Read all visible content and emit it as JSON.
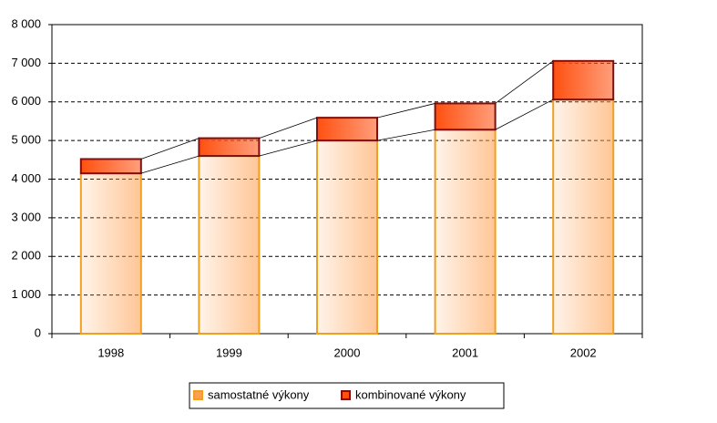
{
  "chart_data": {
    "type": "stacked_bar",
    "categories": [
      "1998",
      "1999",
      "2000",
      "2001",
      "2002"
    ],
    "series": [
      {
        "name": "samostatné výkony",
        "color": "#ffa050",
        "values": [
          4150,
          4600,
          5000,
          5280,
          6060
        ]
      },
      {
        "name": "kombinované výkony",
        "color": "#ff5010",
        "values": [
          370,
          460,
          590,
          680,
          1000
        ]
      }
    ],
    "ylim": [
      0,
      8000
    ],
    "yticks": [
      0,
      {
        "value": 1000,
        "label": "1 000"
      },
      {
        "value": 2000,
        "label": "2 000"
      },
      {
        "value": 3000,
        "label": "3 000"
      },
      {
        "value": 4000,
        "label": "4 000"
      },
      {
        "value": 5000,
        "label": "5 000"
      },
      {
        "value": 6000,
        "label": "6 000"
      },
      {
        "value": 7000,
        "label": "7 000"
      },
      {
        "value": 8000,
        "label": "8 000"
      }
    ],
    "grid": true,
    "legend": "bottom"
  }
}
